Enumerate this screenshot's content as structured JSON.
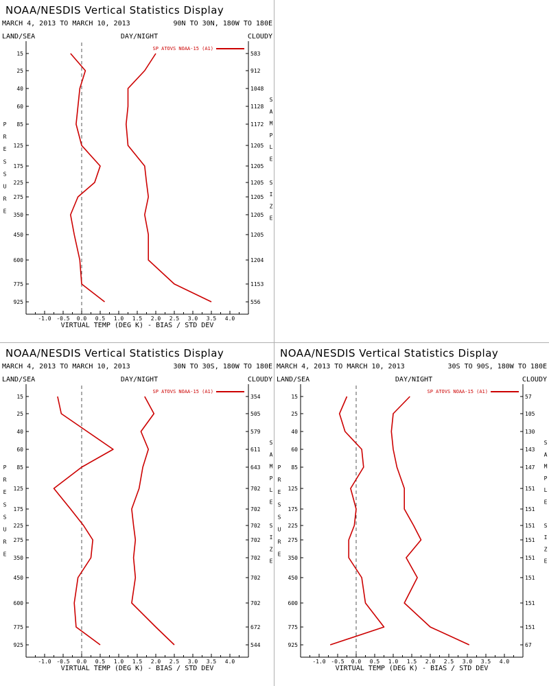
{
  "chart_data": [
    {
      "type": "line",
      "title": "NOAA/NESDIS Vertical Statistics Display",
      "date_range": "MARCH 4, 2013 TO MARCH 10, 2013",
      "region": "90N TO 30N, 180W TO 180E",
      "header_left": "LAND/SEA",
      "header_center": "DAY/NIGHT",
      "header_right": "CLOUDY",
      "xlabel": "VIRTUAL TEMP (DEG K) - BIAS / STD DEV",
      "ylabel": "PRESSURE",
      "right_label": "SAMPLE SIZE",
      "x_ticks": [
        "-1.0",
        "-0.5",
        "0.0",
        "0.5",
        "1.0",
        "1.5",
        "2.0",
        "2.5",
        "3.0",
        "3.5",
        "4.0"
      ],
      "xlim": [
        -1.5,
        4.5
      ],
      "pressure_levels": [
        "15",
        "25",
        "40",
        "60",
        "85",
        "125",
        "175",
        "225",
        "275",
        "350",
        "450",
        "600",
        "775",
        "925"
      ],
      "sample_sizes": [
        "583",
        "912",
        "1048",
        "1128",
        "1172",
        "1205",
        "1205",
        "1205",
        "1205",
        "1205",
        "1205",
        "1204",
        "1153",
        "556"
      ],
      "legend": "SP ATOVS NOAA-15 (A1)",
      "line_color": "#cc0000",
      "series": [
        {
          "role": "bias",
          "values": [
            -0.3,
            0.1,
            -0.05,
            -0.1,
            -0.15,
            0.0,
            0.5,
            0.35,
            -0.1,
            -0.3,
            -0.2,
            -0.05,
            0.0,
            0.62
          ]
        },
        {
          "role": "std_dev",
          "values": [
            2.0,
            1.7,
            1.25,
            1.25,
            1.2,
            1.25,
            1.7,
            1.75,
            1.8,
            1.7,
            1.8,
            1.8,
            2.5,
            3.5
          ]
        }
      ]
    },
    {
      "type": "line",
      "title": "NOAA/NESDIS Vertical Statistics Display",
      "date_range": "MARCH 4, 2013 TO MARCH 10, 2013",
      "region": "30N TO 30S, 180W TO 180E",
      "header_left": "LAND/SEA",
      "header_center": "DAY/NIGHT",
      "header_right": "CLOUDY",
      "xlabel": "VIRTUAL TEMP (DEG K) - BIAS / STD DEV",
      "ylabel": "PRESSURE",
      "right_label": "SAMPLE SIZE",
      "x_ticks": [
        "-1.0",
        "-0.5",
        "0.0",
        "0.5",
        "1.0",
        "1.5",
        "2.0",
        "2.5",
        "3.0",
        "3.5",
        "4.0"
      ],
      "xlim": [
        -1.5,
        4.5
      ],
      "pressure_levels": [
        "15",
        "25",
        "40",
        "60",
        "85",
        "125",
        "175",
        "225",
        "275",
        "350",
        "450",
        "600",
        "775",
        "925"
      ],
      "sample_sizes": [
        "354",
        "505",
        "579",
        "611",
        "643",
        "702",
        "702",
        "702",
        "702",
        "702",
        "702",
        "702",
        "672",
        "544"
      ],
      "legend": "SP ATOVS NOAA-15 (A1)",
      "line_color": "#cc0000",
      "series": [
        {
          "role": "bias",
          "values": [
            -0.65,
            -0.55,
            0.15,
            0.85,
            0.0,
            -0.75,
            -0.3,
            0.05,
            0.3,
            0.25,
            -0.1,
            -0.2,
            -0.15,
            0.5
          ]
        },
        {
          "role": "std_dev",
          "values": [
            1.7,
            1.95,
            1.6,
            1.8,
            1.65,
            1.55,
            1.35,
            1.4,
            1.45,
            1.4,
            1.45,
            1.35,
            2.0,
            2.5
          ]
        }
      ]
    },
    {
      "type": "line",
      "title": "NOAA/NESDIS Vertical Statistics Display",
      "date_range": "MARCH 4, 2013 TO MARCH 10, 2013",
      "region": "30S TO 90S, 180W TO 180E",
      "header_left": "LAND/SEA",
      "header_center": "DAY/NIGHT",
      "header_right": "CLOUDY",
      "xlabel": "VIRTUAL TEMP (DEG K) - BIAS / STD DEV",
      "ylabel": "PRESSURE",
      "right_label": "SAMPLE SIZE",
      "x_ticks": [
        "-1.0",
        "-0.5",
        "0.0",
        "0.5",
        "1.0",
        "1.5",
        "2.0",
        "2.5",
        "3.0",
        "3.5",
        "4.0"
      ],
      "xlim": [
        -1.5,
        4.5
      ],
      "pressure_levels": [
        "15",
        "25",
        "40",
        "60",
        "85",
        "125",
        "175",
        "225",
        "275",
        "350",
        "450",
        "600",
        "775",
        "925"
      ],
      "sample_sizes": [
        "57",
        "105",
        "130",
        "143",
        "147",
        "151",
        "151",
        "151",
        "151",
        "151",
        "151",
        "151",
        "151",
        "67"
      ],
      "legend": "SP ATOVS NOAA-15 (A1)",
      "line_color": "#cc0000",
      "series": [
        {
          "role": "bias",
          "values": [
            -0.25,
            -0.45,
            -0.3,
            0.15,
            0.2,
            -0.15,
            0.0,
            -0.05,
            -0.2,
            -0.2,
            0.15,
            0.25,
            0.75,
            -0.7
          ]
        },
        {
          "role": "std_dev",
          "values": [
            1.45,
            1.0,
            0.95,
            1.0,
            1.1,
            1.3,
            1.3,
            1.55,
            1.75,
            1.35,
            1.65,
            1.3,
            2.0,
            3.05
          ]
        }
      ]
    }
  ]
}
